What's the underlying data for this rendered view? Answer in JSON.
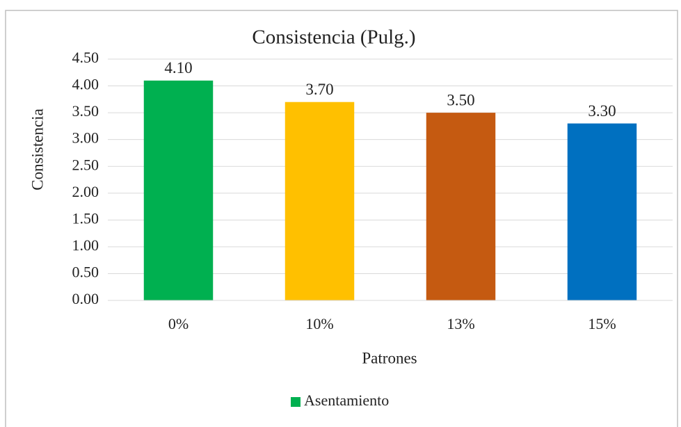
{
  "chart_data": {
    "type": "bar",
    "title": "Consistencia (Pulg.)",
    "x_label": "Patrones",
    "y_label": "Consistencia",
    "categories": [
      "0%",
      "10%",
      "13%",
      "15%"
    ],
    "series": [
      {
        "name": "Asentamiento",
        "color": "#00b050",
        "colors": [
          "#00b050",
          "#ffc000",
          "#c55a11",
          "#0070c0"
        ],
        "values": [
          4.1,
          3.7,
          3.5,
          3.3
        ],
        "value_labels": [
          "4.10",
          "3.70",
          "3.50",
          "3.30"
        ]
      }
    ],
    "ylim": [
      0,
      4.5
    ],
    "yticks": [
      {
        "value": 0,
        "label": "0.00"
      },
      {
        "value": 0.5,
        "label": "0.50"
      },
      {
        "value": 1,
        "label": "1.00"
      },
      {
        "value": 1.5,
        "label": "1.50"
      },
      {
        "value": 2,
        "label": "2.00"
      },
      {
        "value": 2.5,
        "label": "2.50"
      },
      {
        "value": 3,
        "label": "3.00"
      },
      {
        "value": 3.5,
        "label": "3.50"
      },
      {
        "value": 4,
        "label": "4.00"
      },
      {
        "value": 4.5,
        "label": "4.50"
      }
    ],
    "grid": true,
    "legend": "bottom"
  }
}
